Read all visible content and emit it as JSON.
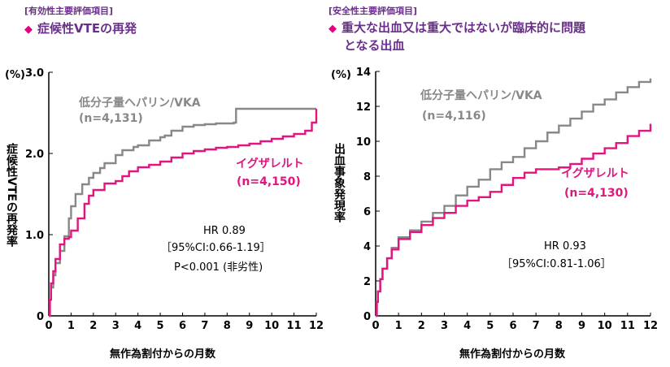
{
  "colors": {
    "accent": "#6b2e8c",
    "bullet": "#e6007e",
    "series_gray": "#888888",
    "series_magenta": "#e2157f"
  },
  "left": {
    "tag": "[有効性主要評価項目]",
    "bullet": "◆",
    "heading": "症候性VTEの再発",
    "stats": {
      "line1": "HR 0.89",
      "line2": "［95%CI:0.66-1.19］",
      "line3": "P<0.001 (非劣性)"
    }
  },
  "right": {
    "tag": "[安全性主要評価項目]",
    "bullet": "◆",
    "heading_line1": "重大な出血又は重大ではないが臨床的に問題",
    "heading_line2": "となる出血",
    "stats": {
      "line1": "HR 0.93",
      "line2": "［95%CI:0.81-1.06］"
    }
  },
  "chart_data": [
    {
      "type": "line",
      "title": "症候性VTEの再発",
      "xlabel": "無作為割付からの月数",
      "ylabel": "症候性VTEの再発率",
      "yunit": "(%)",
      "xlim": [
        0,
        12
      ],
      "ylim": [
        0,
        3.0
      ],
      "xticks": [
        "0",
        "1",
        "2",
        "3",
        "4",
        "5",
        "6",
        "7",
        "8",
        "9",
        "10",
        "11",
        "12"
      ],
      "yticks": [
        "0",
        "1.0",
        "2.0",
        "3.0"
      ],
      "series": [
        {
          "name": "低分子量ヘパリン/VKA",
          "n": "(n=4,131)",
          "x": [
            0,
            0.05,
            0.1,
            0.2,
            0.3,
            0.5,
            0.7,
            0.9,
            1.0,
            1.2,
            1.5,
            1.8,
            2.0,
            2.3,
            2.5,
            3.0,
            3.3,
            3.8,
            4.0,
            4.5,
            5.0,
            5.2,
            5.5,
            6.0,
            6.5,
            7.0,
            7.5,
            8.0,
            8.3,
            8.4,
            9.0,
            10.0,
            11.0,
            11.5,
            12.0
          ],
          "y": [
            0,
            0.2,
            0.35,
            0.5,
            0.65,
            0.8,
            0.98,
            1.2,
            1.35,
            1.5,
            1.62,
            1.7,
            1.76,
            1.82,
            1.88,
            1.98,
            2.04,
            2.08,
            2.1,
            2.16,
            2.2,
            2.22,
            2.28,
            2.33,
            2.35,
            2.36,
            2.37,
            2.37,
            2.38,
            2.55,
            2.55,
            2.55,
            2.55,
            2.55,
            2.55
          ]
        },
        {
          "name": "イグザレルト",
          "n": "(n=4,150)",
          "x": [
            0,
            0.05,
            0.1,
            0.2,
            0.3,
            0.5,
            0.7,
            0.9,
            1.0,
            1.3,
            1.6,
            1.8,
            2.0,
            2.5,
            3.0,
            3.3,
            3.6,
            4.0,
            4.5,
            5.0,
            5.5,
            6.0,
            6.5,
            7.0,
            7.5,
            8.0,
            8.5,
            9.0,
            9.5,
            10.0,
            10.5,
            11.0,
            11.5,
            11.8,
            12.0
          ],
          "y": [
            0,
            0.2,
            0.4,
            0.55,
            0.7,
            0.88,
            0.95,
            0.97,
            1.05,
            1.2,
            1.38,
            1.48,
            1.55,
            1.63,
            1.66,
            1.72,
            1.78,
            1.83,
            1.86,
            1.9,
            1.95,
            2.0,
            2.03,
            2.05,
            2.07,
            2.08,
            2.1,
            2.12,
            2.15,
            2.18,
            2.21,
            2.24,
            2.28,
            2.38,
            2.55
          ]
        }
      ]
    },
    {
      "type": "line",
      "title": "重大な出血又は重大ではないが臨床的に問題となる出血",
      "xlabel": "無作為割付からの月数",
      "ylabel": "出血事象発現率",
      "yunit": "(%)",
      "xlim": [
        0,
        12
      ],
      "ylim": [
        0,
        14
      ],
      "xticks": [
        "0",
        "1",
        "2",
        "3",
        "4",
        "5",
        "6",
        "7",
        "8",
        "9",
        "10",
        "11",
        "12"
      ],
      "yticks": [
        "0",
        "2",
        "4",
        "6",
        "8",
        "10",
        "12",
        "14"
      ],
      "series": [
        {
          "name": "低分子量ヘパリン/VKA",
          "n": "(n=4,116)",
          "x": [
            0,
            0.05,
            0.1,
            0.2,
            0.3,
            0.5,
            0.7,
            1.0,
            1.5,
            2.0,
            2.5,
            3.0,
            3.5,
            4.0,
            4.5,
            5.0,
            5.5,
            6.0,
            6.5,
            7.0,
            7.5,
            8.0,
            8.5,
            9.0,
            9.5,
            10.0,
            10.5,
            11.0,
            11.5,
            12.0
          ],
          "y": [
            0,
            0.8,
            1.4,
            2.1,
            2.7,
            3.3,
            3.9,
            4.5,
            4.9,
            5.4,
            5.9,
            6.3,
            6.9,
            7.4,
            7.8,
            8.4,
            8.8,
            9.1,
            9.6,
            10.0,
            10.5,
            10.9,
            11.3,
            11.7,
            12.1,
            12.4,
            12.8,
            13.1,
            13.4,
            13.6
          ]
        },
        {
          "name": "イグザレルト",
          "n": "(n=4,130)",
          "x": [
            0,
            0.05,
            0.1,
            0.2,
            0.3,
            0.5,
            0.7,
            1.0,
            1.5,
            2.0,
            2.5,
            3.0,
            3.5,
            4.0,
            4.5,
            5.0,
            5.5,
            6.0,
            6.5,
            7.0,
            7.5,
            8.0,
            8.5,
            9.0,
            9.5,
            10.0,
            10.5,
            11.0,
            11.5,
            12.0
          ],
          "y": [
            0,
            0.8,
            1.4,
            2.1,
            2.7,
            3.3,
            3.8,
            4.4,
            4.8,
            5.2,
            5.6,
            5.9,
            6.3,
            6.6,
            6.8,
            7.1,
            7.5,
            7.9,
            8.2,
            8.4,
            8.4,
            8.5,
            8.7,
            9.0,
            9.3,
            9.6,
            9.9,
            10.3,
            10.6,
            11.0
          ]
        }
      ]
    }
  ]
}
